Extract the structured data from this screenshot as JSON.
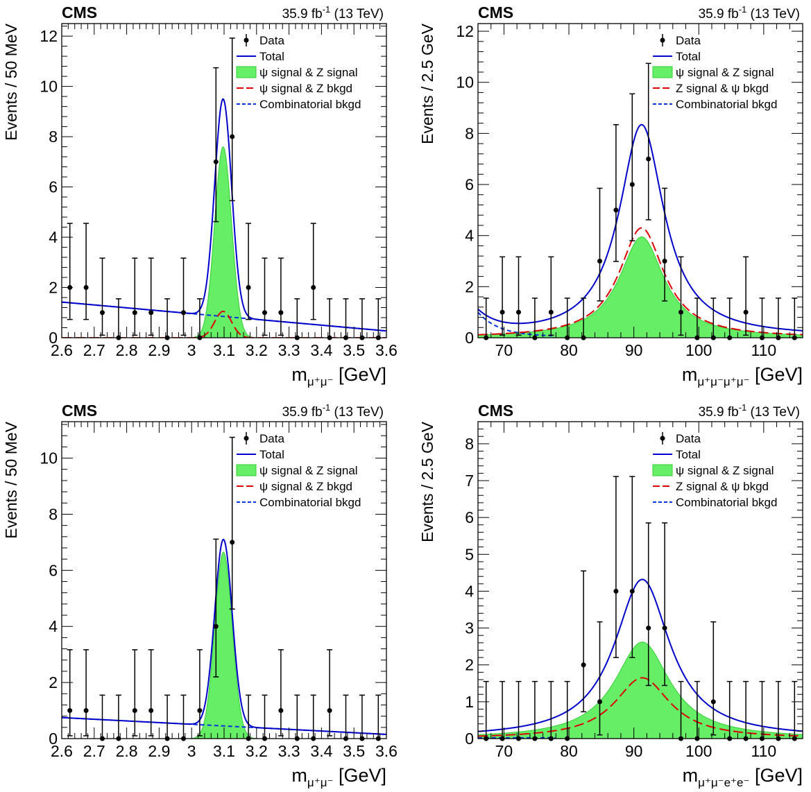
{
  "chart_data": [
    {
      "type": "scatter",
      "experiment": "CMS",
      "lumi_label": "35.9 fb",
      "lumi_sup": "-1",
      "energy_label": "(13 TeV)",
      "ylabel": "Events / 50 MeV",
      "xlabel_base": "m",
      "xlabel_sub": "μ⁺μ⁻",
      "xlabel_unit": "[GeV]",
      "xlim": [
        2.6,
        3.6
      ],
      "ylim": [
        0,
        12.5
      ],
      "xticks": [
        2.6,
        2.7,
        2.8,
        2.9,
        3,
        3.1,
        3.2,
        3.3,
        3.4,
        3.5,
        3.6
      ],
      "xtick_labels": [
        "2.6",
        "2.7",
        "2.8",
        "2.9",
        "3",
        "3.1",
        "3.2",
        "3.3",
        "3.4",
        "3.5",
        "3.6"
      ],
      "yticks": [
        0,
        2,
        4,
        6,
        8,
        10,
        12
      ],
      "ytick_labels": [
        "0",
        "2",
        "4",
        "6",
        "8",
        "10",
        "12"
      ],
      "legend": [
        "Data",
        "Total",
        "ψ signal & Z signal",
        "ψ signal & Z bkgd",
        "Combinatorial bkgd"
      ],
      "data": {
        "x": [
          2.625,
          2.675,
          2.725,
          2.775,
          2.825,
          2.875,
          2.925,
          2.975,
          3.025,
          3.075,
          3.125,
          3.175,
          3.225,
          3.275,
          3.325,
          3.375,
          3.425,
          3.475,
          3.525,
          3.575
        ],
        "y": [
          2,
          2,
          1,
          0,
          1,
          1,
          0,
          1,
          0,
          7,
          8,
          2,
          1,
          1,
          0,
          2,
          0,
          0,
          0,
          0
        ]
      },
      "model": {
        "background": {
          "a": 1.42,
          "b": -1.15
        },
        "peak": {
          "mean": 3.097,
          "sigma": 0.026,
          "signal_amp": 7.6,
          "bkgd_amp": 1.05
        },
        "lineshape": "gauss"
      }
    },
    {
      "type": "scatter",
      "experiment": "CMS",
      "lumi_label": "35.9 fb",
      "lumi_sup": "-1",
      "energy_label": "(13 TeV)",
      "ylabel": "Events / 2.5 GeV",
      "xlabel_base": "m",
      "xlabel_sub": "μ⁺μ⁻μ⁺μ⁻",
      "xlabel_unit": "[GeV]",
      "xlim": [
        66,
        116
      ],
      "ylim": [
        0,
        12.3
      ],
      "xticks": [
        70,
        80,
        90,
        100,
        110
      ],
      "xtick_labels": [
        "70",
        "80",
        "90",
        "100",
        "110"
      ],
      "yticks": [
        0,
        2,
        4,
        6,
        8,
        10,
        12
      ],
      "ytick_labels": [
        "0",
        "2",
        "4",
        "6",
        "8",
        "10",
        "12"
      ],
      "legend": [
        "Data",
        "Total",
        "ψ signal & Z signal",
        "Z signal & ψ bkgd",
        "Combinatorial bkgd"
      ],
      "data": {
        "x": [
          67.25,
          69.75,
          72.25,
          74.75,
          77.25,
          79.75,
          82.25,
          84.75,
          87.25,
          89.75,
          92.25,
          94.75,
          97.25,
          99.75,
          102.25,
          104.75,
          107.25,
          109.75,
          112.25,
          114.75
        ],
        "y": [
          0,
          1,
          1,
          0,
          1,
          0,
          0,
          3,
          5,
          6,
          7,
          3,
          1,
          0,
          0,
          0,
          1,
          0,
          0,
          0
        ]
      },
      "model": {
        "background": {
          "a": 0.95,
          "b": -0.3
        },
        "peak": {
          "mean": 91.2,
          "sigma": 4.2,
          "signal_amp": 3.95,
          "bkgd_amp": 4.3,
          "total_amp": 8.3
        },
        "lineshape": "breit-wigner"
      }
    },
    {
      "type": "scatter",
      "experiment": "CMS",
      "lumi_label": "35.9 fb",
      "lumi_sup": "-1",
      "energy_label": "(13 TeV)",
      "ylabel": "Events / 50 MeV",
      "xlabel_base": "m",
      "xlabel_sub": "μ⁺μ⁻",
      "xlabel_unit": "[GeV]",
      "xlim": [
        2.6,
        3.6
      ],
      "ylim": [
        0,
        11.3
      ],
      "xticks": [
        2.6,
        2.7,
        2.8,
        2.9,
        3,
        3.1,
        3.2,
        3.3,
        3.4,
        3.5,
        3.6
      ],
      "xtick_labels": [
        "2.6",
        "2.7",
        "2.8",
        "2.9",
        "3",
        "3.1",
        "3.2",
        "3.3",
        "3.4",
        "3.5",
        "3.6"
      ],
      "yticks": [
        0,
        2,
        4,
        6,
        8,
        10
      ],
      "ytick_labels": [
        "0",
        "2",
        "4",
        "6",
        "8",
        "10"
      ],
      "legend": [
        "Data",
        "Total",
        "ψ signal & Z signal",
        "ψ signal & Z bkgd",
        "Combinatorial bkgd"
      ],
      "data": {
        "x": [
          2.625,
          2.675,
          2.725,
          2.775,
          2.825,
          2.875,
          2.925,
          2.975,
          3.025,
          3.075,
          3.125,
          3.175,
          3.225,
          3.275,
          3.325,
          3.375,
          3.425,
          3.475,
          3.525,
          3.575
        ],
        "y": [
          1,
          1,
          0,
          0,
          1,
          1,
          0,
          0,
          1,
          4,
          7,
          0,
          0,
          1,
          0,
          0,
          1,
          0,
          0,
          0
        ]
      },
      "model": {
        "background": {
          "a": 0.75,
          "b": -0.6
        },
        "peak": {
          "mean": 3.098,
          "sigma": 0.027,
          "signal_amp": 6.65,
          "bkgd_amp": 0
        },
        "lineshape": "gauss"
      }
    },
    {
      "type": "scatter",
      "experiment": "CMS",
      "lumi_label": "35.9 fb",
      "lumi_sup": "-1",
      "energy_label": "(13 TeV)",
      "ylabel": "Events / 2.5 GeV",
      "xlabel_base": "m",
      "xlabel_sub": "μ⁺μ⁻e⁺e⁻",
      "xlabel_unit": "[GeV]",
      "xlim": [
        66,
        116
      ],
      "ylim": [
        0,
        8.6
      ],
      "xticks": [
        70,
        80,
        90,
        100,
        110
      ],
      "xtick_labels": [
        "70",
        "80",
        "90",
        "100",
        "110"
      ],
      "yticks": [
        0,
        1,
        2,
        3,
        4,
        5,
        6,
        7,
        8
      ],
      "ytick_labels": [
        "0",
        "1",
        "2",
        "3",
        "4",
        "5",
        "6",
        "7",
        "8"
      ],
      "legend": [
        "Data",
        "Total",
        "ψ signal & Z signal",
        "Z signal & ψ bkgd",
        "Combinatorial bkgd"
      ],
      "data": {
        "x": [
          67.25,
          69.75,
          72.25,
          74.75,
          77.25,
          79.75,
          82.25,
          84.75,
          87.25,
          89.75,
          92.25,
          94.75,
          97.25,
          99.75,
          102.25,
          104.75,
          107.25,
          109.75,
          112.25,
          114.75
        ],
        "y": [
          0,
          0,
          0,
          0,
          0,
          0,
          2,
          1,
          4,
          4,
          3,
          3,
          0,
          0,
          1,
          0,
          0,
          0,
          0,
          0
        ]
      },
      "model": {
        "background": {
          "a": 0.02,
          "b": 0
        },
        "peak": {
          "mean": 91.3,
          "sigma": 5.2,
          "signal_amp": 2.62,
          "bkgd_amp": 1.65,
          "total_amp": 4.3
        },
        "lineshape": "breit-wigner"
      }
    }
  ],
  "colors": {
    "data": "#000000",
    "total": "#0000cc",
    "signal_fill": "#66ee66",
    "signal_edge": "#33cc33",
    "bkgd_line": "#dd0000",
    "combinatorial": "#0033dd"
  }
}
